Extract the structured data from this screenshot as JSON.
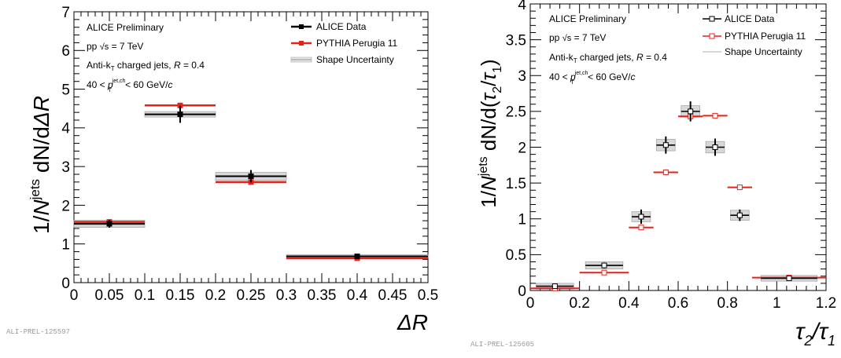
{
  "chart_data": [
    {
      "type": "histogram",
      "ylabel": "1/N^jets dN/dΔR",
      "ylabel_parts": {
        "a": "1/",
        "b": "N",
        "sup": "jets",
        "c": " dN/d",
        "d": "ΔR"
      },
      "xlabel": "ΔR",
      "xlim": [
        0,
        0.5
      ],
      "ylim": [
        0,
        7
      ],
      "x_ticks": [
        "0",
        "0.05",
        "0.1",
        "0.15",
        "0.2",
        "0.25",
        "0.3",
        "0.35",
        "0.4",
        "0.45",
        "0.5"
      ],
      "y_ticks": [
        "0",
        "1",
        "2",
        "3",
        "4",
        "5",
        "6",
        "7"
      ],
      "annotation": {
        "line1": "ALICE Preliminary",
        "line2_a": "pp ",
        "line2_b": "√s",
        "line2_c": " = 7 TeV",
        "line3_a": "Anti-k",
        "line3_sub": "T",
        "line3_b": "  charged jets, ",
        "line3_c": "R",
        "line3_d": " = 0.4",
        "line4_a": "40 < ",
        "line4_p": "p",
        "line4_sup": "jet,ch",
        "line4_sub": "T",
        "line4_b": " < 60 GeV/",
        "line4_c": "c"
      },
      "legend": [
        {
          "label": "ALICE Data",
          "color": "#000000",
          "marker": "filled"
        },
        {
          "label": "PYTHIA Perugia 11",
          "color": "#e8201a",
          "marker": "filled"
        },
        {
          "label": "Shape Uncertainty",
          "color": "#999999",
          "marker": "band"
        }
      ],
      "series": [
        {
          "name": "ALICE Data",
          "bins": [
            [
              0,
              0.1
            ],
            [
              0.1,
              0.2
            ],
            [
              0.2,
              0.3
            ],
            [
              0.3,
              0.5
            ]
          ],
          "values": [
            1.52,
            4.35,
            2.75,
            0.68
          ],
          "stat_err": [
            0.1,
            0.22,
            0.16,
            0.05
          ],
          "sys_err": [
            0.09,
            0.07,
            0.1,
            0.04
          ]
        },
        {
          "name": "PYTHIA Perugia 11",
          "bins": [
            [
              0,
              0.1
            ],
            [
              0.1,
              0.2
            ],
            [
              0.2,
              0.3
            ],
            [
              0.3,
              0.5
            ]
          ],
          "values": [
            1.57,
            4.58,
            2.6,
            0.63
          ]
        }
      ],
      "tag": "ALI-PREL-125597",
      "colors": {
        "data": "#000000",
        "model": "#e8201a",
        "band": "#d8d8d8"
      }
    },
    {
      "type": "histogram",
      "ylabel": "1/N^jets dN/d(τ2/τ1)",
      "ylabel_parts": {
        "a": "1/",
        "b": "N",
        "sup": "jets",
        "c": " dN/d(",
        "d": "τ",
        "sub1": "2",
        "e": "/",
        "f": "τ",
        "sub2": "1",
        "g": ")"
      },
      "xlabel": "τ2/τ1",
      "xlabel_parts": {
        "a": "τ",
        "sub1": "2",
        "b": "/",
        "c": "τ",
        "sub2": "1"
      },
      "xlim": [
        0,
        1.2
      ],
      "ylim": [
        0,
        4
      ],
      "x_ticks": [
        "0",
        "0.2",
        "0.4",
        "0.6",
        "0.8",
        "1",
        "1.2"
      ],
      "y_ticks": [
        "0",
        "0.5",
        "1",
        "1.5",
        "2",
        "2.5",
        "3",
        "3.5",
        "4"
      ],
      "annotation": {
        "line1": "ALICE Preliminary",
        "line2_a": "pp ",
        "line2_b": "√s",
        "line2_c": " = 7 TeV",
        "line3_a": "Anti-k",
        "line3_sub": "T",
        "line3_b": "  charged jets, ",
        "line3_c": "R",
        "line3_d": " = 0.4",
        "line4_a": "40 < ",
        "line4_p": "p",
        "line4_sup": "jet,ch",
        "line4_sub": "T",
        "line4_b": " < 60 GeV/",
        "line4_c": "c"
      },
      "legend": [
        {
          "label": "ALICE Data",
          "color": "#000000",
          "marker": "open"
        },
        {
          "label": "PYTHIA Perugia 11",
          "color": "#e8201a",
          "marker": "open"
        },
        {
          "label": "Shape Uncertainty",
          "color": "#999999",
          "marker": "band"
        }
      ],
      "series": [
        {
          "name": "ALICE Data",
          "bins": [
            [
              0,
              0.2
            ],
            [
              0.2,
              0.4
            ],
            [
              0.4,
              0.5
            ],
            [
              0.5,
              0.6
            ],
            [
              0.6,
              0.7
            ],
            [
              0.7,
              0.8
            ],
            [
              0.8,
              0.9
            ],
            [
              0.9,
              1.2
            ]
          ],
          "values": [
            0.06,
            0.35,
            1.03,
            2.03,
            2.5,
            2.0,
            1.05,
            0.17
          ],
          "stat_err": [
            0.03,
            0.04,
            0.1,
            0.12,
            0.14,
            0.12,
            0.08,
            0.03
          ],
          "sys_err": [
            0.04,
            0.05,
            0.07,
            0.08,
            0.08,
            0.08,
            0.07,
            0.04
          ]
        },
        {
          "name": "PYTHIA Perugia 11",
          "bins": [
            [
              0,
              0.2
            ],
            [
              0.2,
              0.4
            ],
            [
              0.4,
              0.5
            ],
            [
              0.5,
              0.6
            ],
            [
              0.6,
              0.7
            ],
            [
              0.7,
              0.8
            ],
            [
              0.8,
              0.9
            ],
            [
              0.9,
              1.2
            ]
          ],
          "values": [
            0.03,
            0.25,
            0.88,
            1.65,
            2.43,
            2.44,
            1.44,
            0.18
          ]
        }
      ],
      "tag": "ALI-PREL-125605",
      "colors": {
        "data": "#000000",
        "model": "#e8201a",
        "band": "#d8d8d8"
      }
    }
  ]
}
